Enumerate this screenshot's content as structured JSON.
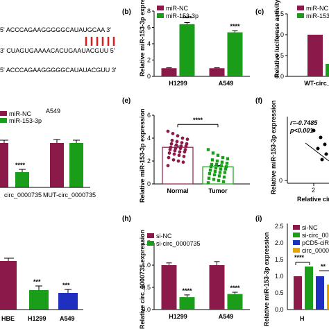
{
  "panel_labels": {
    "b": "(b)",
    "c": "(c)",
    "e": "(e)",
    "f": "(f)",
    "h": "(h)",
    "i": "(i)"
  },
  "colors": {
    "nc": "#8b1a4a",
    "mir": "#1a9e1a",
    "blue": "#1f2fbf",
    "scatter": "#000000"
  },
  "sequences": {
    "line1": "5' ACCCAGAAGGGGGCAUAUGCAA 3'",
    "line2": "3' CUAGUGAAAACACUGAAUACGUU 5'",
    "line3": "5' ACCCAGAAGGGGGCAUAUACGUU 3'"
  },
  "panel_a2": {
    "legend": [
      "miR-NC",
      "miR-153-3p"
    ],
    "legend_title": "A549",
    "categories": [
      "circ_0000735",
      "MUT-circ_0000735"
    ],
    "sig": "****"
  },
  "panel_f": {
    "r": "r=-0.7485",
    "p": "p<0.001",
    "ylabel": "Relative miR-153-3p expression",
    "xlabel": "Relative circ_",
    "ytick": "0",
    "xtick": "2"
  },
  "panel_g": {
    "categories": [
      "HBE",
      "H1299",
      "A549"
    ],
    "sig": [
      "***",
      "***"
    ]
  },
  "panel_i": {
    "legend": [
      "si-NC",
      "si-circ_00",
      "pCD5-ciR",
      "circ_0000"
    ],
    "ylabel": "Relative miR-153-3p expression",
    "yticks": [
      "0.0",
      "0.5",
      "1.0",
      "1.5",
      "2.0",
      "2.5"
    ],
    "xtick": "H",
    "sig": [
      "****",
      "**"
    ]
  },
  "chart_data": [
    {
      "type": "bar",
      "panel": "b",
      "categories": [
        "H1299",
        "A549"
      ],
      "series": [
        {
          "name": "miR-NC",
          "values": [
            1.0,
            1.0
          ]
        },
        {
          "name": "miR-153-3p",
          "values": [
            6.4,
            5.4
          ]
        }
      ],
      "ylabel": "Relative miR-153-3p expression",
      "yticks": [
        "0",
        "2",
        "4",
        "6",
        "8"
      ],
      "ylim": [
        0,
        8
      ],
      "errors": [
        [
          0.05,
          0.05
        ],
        [
          0.2,
          0.2
        ]
      ],
      "annotations": [
        "****",
        "****"
      ],
      "legend": "top-left"
    },
    {
      "type": "bar",
      "panel": "c",
      "categories": [
        "WT-circ_0000"
      ],
      "series": [
        {
          "name": "miR-NC",
          "values": [
            1.0
          ]
        },
        {
          "name": "miR-153-",
          "values": [
            0.3
          ]
        }
      ],
      "ylabel": "Relative luciferase activity",
      "yticks": [
        "0.0",
        "0.5",
        "1.0",
        "1.5"
      ],
      "ylim": [
        0,
        1.5
      ],
      "annotations": [
        "***"
      ],
      "legend": "top-right"
    },
    {
      "type": "scatter",
      "panel": "e",
      "categories": [
        "Normal",
        "Tumor"
      ],
      "means": [
        3.2,
        1.5
      ],
      "errors": [
        0.12,
        0.1
      ],
      "points": [
        [
          4.6,
          4.4,
          4.2,
          4.0,
          3.9,
          3.8,
          3.7,
          3.6,
          3.5,
          3.5,
          3.4,
          3.3,
          3.3,
          3.2,
          3.1,
          3.1,
          3.0,
          3.0,
          2.9,
          2.8,
          2.8,
          2.7,
          2.6,
          2.5,
          2.4,
          2.3,
          2.1,
          2.0,
          1.9,
          1.6
        ],
        [
          3.0,
          2.7,
          2.5,
          2.3,
          2.2,
          2.1,
          2.0,
          1.9,
          1.8,
          1.7,
          1.7,
          1.6,
          1.5,
          1.5,
          1.4,
          1.3,
          1.3,
          1.2,
          1.1,
          1.0,
          1.0,
          0.9,
          0.8,
          0.7,
          0.6,
          0.5,
          0.4,
          0.3,
          0.2,
          0.1
        ]
      ],
      "ylabel": "Relative miR-153-3p expression",
      "yticks": [
        "0",
        "2",
        "4",
        "6"
      ],
      "ylim": [
        0,
        6
      ],
      "annotations": [
        "****"
      ]
    },
    {
      "type": "bar",
      "panel": "h",
      "categories": [
        "H1299",
        "A549"
      ],
      "series": [
        {
          "name": "si-NC",
          "values": [
            1.0,
            1.0
          ]
        },
        {
          "name": "si-circ_0000735",
          "values": [
            0.28,
            0.35
          ]
        }
      ],
      "errors": [
        [
          0.05,
          0.08
        ],
        [
          0.05,
          0.04
        ]
      ],
      "ylabel": "Relative circ_0000735 expression",
      "yticks": [
        "0.0",
        "0.5",
        "1.0",
        "1.5"
      ],
      "ylim": [
        0,
        1.5
      ],
      "annotations": [
        "****",
        "****"
      ],
      "legend": "top-left"
    }
  ]
}
